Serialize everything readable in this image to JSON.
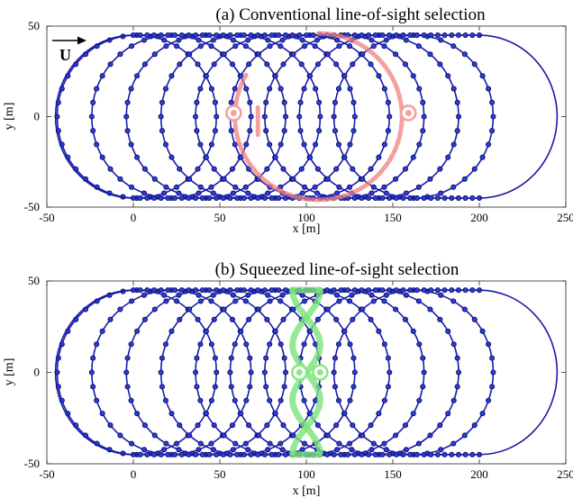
{
  "chart_data": [
    {
      "type": "scatter",
      "title": "(a) Conventional line-of-sight selection",
      "xlabel": "x [m]",
      "ylabel": "y [m]",
      "xlim": [
        -50,
        250
      ],
      "ylim": [
        -50,
        50
      ],
      "xticks": [
        "-50",
        "0",
        "50",
        "100",
        "150",
        "200",
        "250"
      ],
      "yticks": [
        "50",
        "0",
        "-50"
      ],
      "annotation": "U",
      "trajectory": {
        "description_color": "#1a1aa6",
        "loops": 9,
        "loop_spacing_x": 20,
        "loop_radius": 45,
        "first_loop_center_x": 0,
        "point_spacing_deg": 10
      },
      "selection": {
        "color": "#f08080",
        "type": "arc",
        "center": [
          107,
          0
        ],
        "radius": 46,
        "arc_start_deg": 0,
        "arc_end_deg": 180,
        "endpoints": [
          [
            58,
            2
          ],
          [
            159,
            2
          ]
        ]
      }
    },
    {
      "type": "scatter",
      "title": "(b) Squeezed line-of-sight selection",
      "xlabel": "x [m]",
      "ylabel": "y [m]",
      "xlim": [
        -50,
        250
      ],
      "ylim": [
        -50,
        50
      ],
      "xticks": [
        "-50",
        "0",
        "50",
        "100",
        "150",
        "200",
        "250"
      ],
      "yticks": [
        "50",
        "0",
        "-50"
      ],
      "trajectory": {
        "description_color": "#1a1aa6",
        "loops": 9,
        "loop_spacing_x": 20,
        "loop_radius": 45,
        "first_loop_center_x": 0,
        "point_spacing_deg": 10
      },
      "selection": {
        "color": "#7be27b",
        "type": "band",
        "x_range": [
          92,
          108
        ],
        "endpoints": [
          [
            96,
            0
          ],
          [
            108,
            0
          ]
        ]
      }
    }
  ]
}
